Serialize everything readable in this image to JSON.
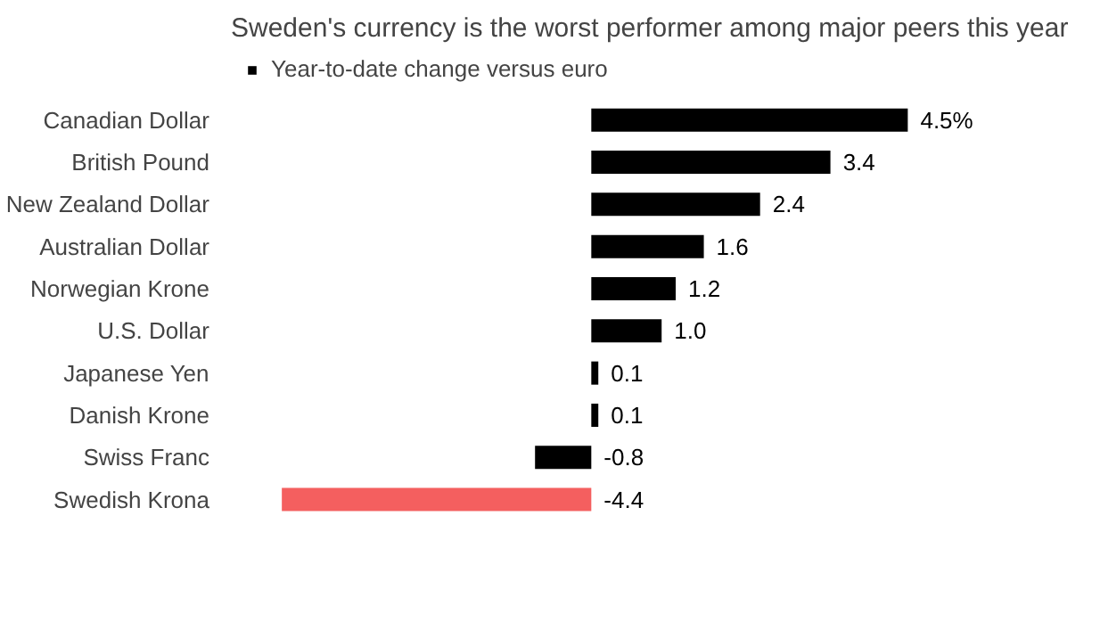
{
  "chart_data": {
    "type": "bar",
    "orientation": "horizontal",
    "title": "Sweden's currency is the worst performer among major peers this year",
    "categories": [
      "Canadian Dollar",
      "British Pound",
      "New Zealand Dollar",
      "Australian Dollar",
      "Norwegian Krone",
      "U.S. Dollar",
      "Japanese Yen",
      "Danish Krone",
      "Swiss Franc",
      "Swedish Krona"
    ],
    "series": [
      {
        "name": "Year-to-date change versus euro",
        "color": "#000000",
        "colors": [
          "#000000",
          "#000000",
          "#000000",
          "#000000",
          "#000000",
          "#000000",
          "#000000",
          "#000000",
          "#000000",
          "#f45f5f"
        ],
        "values": [
          4.5,
          3.4,
          2.4,
          1.6,
          1.2,
          1.0,
          0.1,
          0.1,
          -0.8,
          -4.4
        ],
        "value_labels": [
          "4.5%",
          "3.4",
          "2.4",
          "1.6",
          "1.2",
          "1.0",
          "0.1",
          "0.1",
          "-0.8",
          "-4.4"
        ]
      }
    ],
    "legend": "top left",
    "grid": false
  }
}
